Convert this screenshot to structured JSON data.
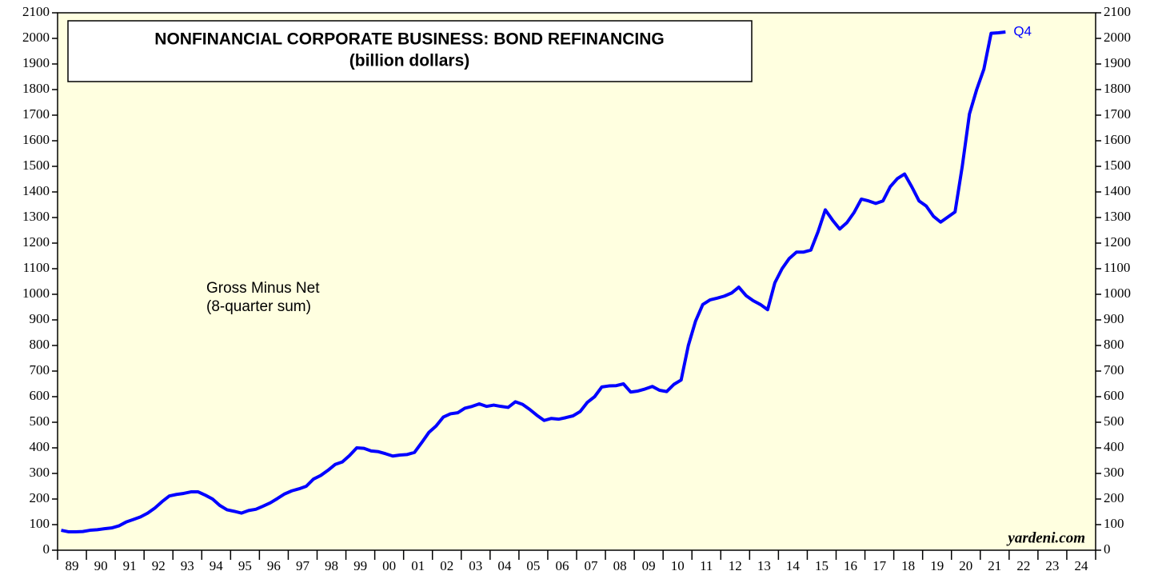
{
  "chart_data": {
    "type": "line",
    "title": "NONFINANCIAL CORPORATE BUSINESS: BOND REFINANCING",
    "subtitle": "(billion dollars)",
    "annotations": [
      "Gross Minus Net",
      "(8-quarter sum)"
    ],
    "end_label": "Q4",
    "source": "yardeni.com",
    "x": [
      1989.125,
      1989.375,
      1989.625,
      1989.875,
      1990.125,
      1990.375,
      1990.625,
      1990.875,
      1991.125,
      1991.375,
      1991.625,
      1991.875,
      1992.125,
      1992.375,
      1992.625,
      1992.875,
      1993.125,
      1993.375,
      1993.625,
      1993.875,
      1994.125,
      1994.375,
      1994.625,
      1994.875,
      1995.125,
      1995.375,
      1995.625,
      1995.875,
      1996.125,
      1996.375,
      1996.625,
      1996.875,
      1997.125,
      1997.375,
      1997.625,
      1997.875,
      1998.125,
      1998.375,
      1998.625,
      1998.875,
      1999.125,
      1999.375,
      1999.625,
      1999.875,
      2000.125,
      2000.375,
      2000.625,
      2000.875,
      2001.125,
      2001.375,
      2001.625,
      2001.875,
      2002.125,
      2002.375,
      2002.625,
      2002.875,
      2003.125,
      2003.375,
      2003.625,
      2003.875,
      2004.125,
      2004.375,
      2004.625,
      2004.875,
      2005.125,
      2005.375,
      2005.625,
      2005.875,
      2006.125,
      2006.375,
      2006.625,
      2006.875,
      2007.125,
      2007.375,
      2007.625,
      2007.875,
      2008.125,
      2008.375,
      2008.625,
      2008.875,
      2009.125,
      2009.375,
      2009.625,
      2009.875,
      2010.125,
      2010.375,
      2010.625,
      2010.875,
      2011.125,
      2011.375,
      2011.625,
      2011.875,
      2012.125,
      2012.375,
      2012.625,
      2012.875,
      2013.125,
      2013.375,
      2013.625,
      2013.875,
      2014.125,
      2014.375,
      2014.625,
      2014.875,
      2015.125,
      2015.375,
      2015.625,
      2015.875,
      2016.125,
      2016.375,
      2016.625,
      2016.875,
      2017.125,
      2017.375,
      2017.625,
      2017.875,
      2018.125,
      2018.375,
      2018.625,
      2018.875,
      2019.125,
      2019.375,
      2019.625,
      2019.875,
      2020.125,
      2020.375,
      2020.625,
      2020.875,
      2021.125,
      2021.375,
      2021.625,
      2021.875
    ],
    "series": [
      {
        "color": "#0000ff",
        "values": [
          78,
          72,
          72,
          73,
          78,
          80,
          84,
          87,
          95,
          110,
          120,
          130,
          145,
          165,
          190,
          212,
          218,
          222,
          228,
          228,
          215,
          200,
          175,
          158,
          152,
          145,
          155,
          160,
          172,
          185,
          202,
          220,
          232,
          240,
          250,
          278,
          292,
          312,
          335,
          345,
          370,
          400,
          398,
          388,
          385,
          377,
          368,
          372,
          374,
          382,
          420,
          460,
          485,
          520,
          533,
          537,
          555,
          562,
          572,
          562,
          567,
          562,
          558,
          580,
          570,
          550,
          527,
          507,
          515,
          512,
          518,
          525,
          542,
          578,
          600,
          638,
          642,
          643,
          650,
          618,
          622,
          630,
          640,
          625,
          620,
          648,
          665,
          800,
          895,
          960,
          978,
          985,
          993,
          1005,
          1028,
          995,
          975,
          960,
          940,
          1045,
          1100,
          1140,
          1165,
          1165,
          1173,
          1245,
          1330,
          1290,
          1255,
          1280,
          1320,
          1372,
          1365,
          1355,
          1365,
          1420,
          1452,
          1470,
          1420,
          1365,
          1345,
          1305,
          1282,
          1302,
          1322,
          1500,
          1705,
          1800,
          1880,
          2020,
          2022,
          2025
        ]
      }
    ],
    "xlim": [
      1989,
      2025
    ],
    "xticks": [
      {
        "value": 1989.5,
        "label": "89"
      },
      {
        "value": 1990.5,
        "label": "90"
      },
      {
        "value": 1991.5,
        "label": "91"
      },
      {
        "value": 1992.5,
        "label": "92"
      },
      {
        "value": 1993.5,
        "label": "93"
      },
      {
        "value": 1994.5,
        "label": "94"
      },
      {
        "value": 1995.5,
        "label": "95"
      },
      {
        "value": 1996.5,
        "label": "96"
      },
      {
        "value": 1997.5,
        "label": "97"
      },
      {
        "value": 1998.5,
        "label": "98"
      },
      {
        "value": 1999.5,
        "label": "99"
      },
      {
        "value": 2000.5,
        "label": "00"
      },
      {
        "value": 2001.5,
        "label": "01"
      },
      {
        "value": 2002.5,
        "label": "02"
      },
      {
        "value": 2003.5,
        "label": "03"
      },
      {
        "value": 2004.5,
        "label": "04"
      },
      {
        "value": 2005.5,
        "label": "05"
      },
      {
        "value": 2006.5,
        "label": "06"
      },
      {
        "value": 2007.5,
        "label": "07"
      },
      {
        "value": 2008.5,
        "label": "08"
      },
      {
        "value": 2009.5,
        "label": "09"
      },
      {
        "value": 2010.5,
        "label": "10"
      },
      {
        "value": 2011.5,
        "label": "11"
      },
      {
        "value": 2012.5,
        "label": "12"
      },
      {
        "value": 2013.5,
        "label": "13"
      },
      {
        "value": 2014.5,
        "label": "14"
      },
      {
        "value": 2015.5,
        "label": "15"
      },
      {
        "value": 2016.5,
        "label": "16"
      },
      {
        "value": 2017.5,
        "label": "17"
      },
      {
        "value": 2018.5,
        "label": "18"
      },
      {
        "value": 2019.5,
        "label": "19"
      },
      {
        "value": 2020.5,
        "label": "20"
      },
      {
        "value": 2021.5,
        "label": "21"
      },
      {
        "value": 2022.5,
        "label": "22"
      },
      {
        "value": 2023.5,
        "label": "23"
      },
      {
        "value": 2024.5,
        "label": "24"
      }
    ],
    "ylim": [
      0,
      2100
    ],
    "yticks": [
      0,
      100,
      200,
      300,
      400,
      500,
      600,
      700,
      800,
      900,
      1000,
      1100,
      1200,
      1300,
      1400,
      1500,
      1600,
      1700,
      1800,
      1900,
      2000,
      2100
    ],
    "y2lim": [
      0,
      2100
    ],
    "grid": false
  }
}
